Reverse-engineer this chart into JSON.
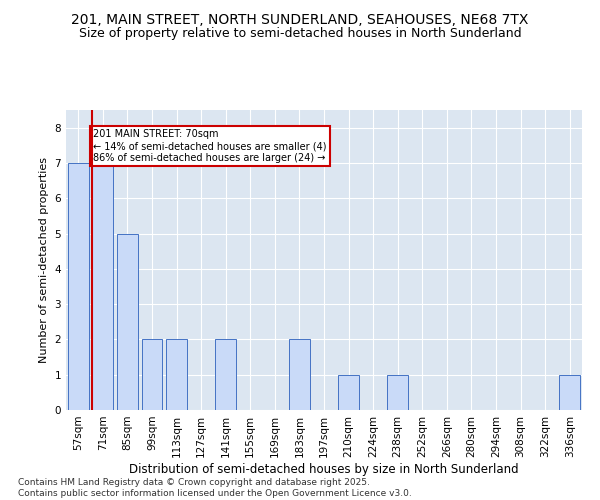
{
  "title1": "201, MAIN STREET, NORTH SUNDERLAND, SEAHOUSES, NE68 7TX",
  "title2": "Size of property relative to semi-detached houses in North Sunderland",
  "xlabel": "Distribution of semi-detached houses by size in North Sunderland",
  "ylabel": "Number of semi-detached properties",
  "footer1": "Contains HM Land Registry data © Crown copyright and database right 2025.",
  "footer2": "Contains public sector information licensed under the Open Government Licence v3.0.",
  "categories": [
    "57sqm",
    "71sqm",
    "85sqm",
    "99sqm",
    "113sqm",
    "127sqm",
    "141sqm",
    "155sqm",
    "169sqm",
    "183sqm",
    "197sqm",
    "210sqm",
    "224sqm",
    "238sqm",
    "252sqm",
    "266sqm",
    "280sqm",
    "294sqm",
    "308sqm",
    "322sqm",
    "336sqm"
  ],
  "values": [
    7,
    7,
    5,
    2,
    2,
    0,
    2,
    0,
    0,
    2,
    0,
    1,
    0,
    1,
    0,
    0,
    0,
    0,
    0,
    0,
    1
  ],
  "bar_color": "#c9daf8",
  "bar_edge_color": "#4472c4",
  "subject_bar_index": 1,
  "subject_line_color": "#cc0000",
  "annotation_text": "201 MAIN STREET: 70sqm\n← 14% of semi-detached houses are smaller (4)\n86% of semi-detached houses are larger (24) →",
  "annotation_box_color": "#ffffff",
  "annotation_box_edge_color": "#cc0000",
  "ylim": [
    0,
    8.5
  ],
  "yticks": [
    0,
    1,
    2,
    3,
    4,
    5,
    6,
    7,
    8
  ],
  "fig_bg_color": "#ffffff",
  "plot_bg_color": "#dce6f1",
  "title1_fontsize": 10,
  "title2_fontsize": 9,
  "xlabel_fontsize": 8.5,
  "ylabel_fontsize": 8,
  "tick_fontsize": 7.5,
  "footer_fontsize": 6.5
}
